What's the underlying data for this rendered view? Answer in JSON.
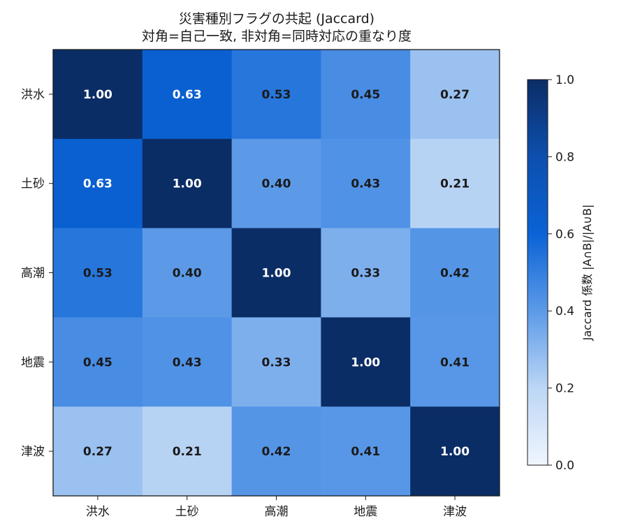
{
  "chart_data": {
    "type": "heatmap",
    "title": "災害種別フラグの共起 (Jaccard)",
    "subtitle": "対角=自己一致, 非対角=同時対応の重なり度",
    "x_categories": [
      "洪水",
      "土砂",
      "高潮",
      "地震",
      "津波"
    ],
    "y_categories": [
      "洪水",
      "土砂",
      "高潮",
      "地震",
      "津波"
    ],
    "matrix": [
      [
        1.0,
        0.63,
        0.53,
        0.45,
        0.27
      ],
      [
        0.63,
        1.0,
        0.4,
        0.43,
        0.21
      ],
      [
        0.53,
        0.4,
        1.0,
        0.33,
        0.42
      ],
      [
        0.45,
        0.43,
        0.33,
        1.0,
        0.41
      ],
      [
        0.27,
        0.21,
        0.42,
        0.41,
        1.0
      ]
    ],
    "colorbar": {
      "label": "Jaccard 係数 |A∩B|/|A∪B|",
      "range": [
        0.0,
        1.0
      ],
      "ticks": [
        "0.0",
        "0.2",
        "0.4",
        "0.6",
        "0.8",
        "1.0"
      ],
      "colormap": "Blues"
    }
  }
}
